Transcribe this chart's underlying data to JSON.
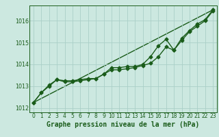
{
  "background_color": "#cce8e0",
  "plot_bg_color": "#cce8e0",
  "grid_color": "#aacfc8",
  "line_color": "#1a5c1a",
  "title": "Graphe pression niveau de la mer (hPa)",
  "xlim": [
    -0.5,
    23.5
  ],
  "ylim": [
    1011.8,
    1016.7
  ],
  "yticks": [
    1012,
    1013,
    1014,
    1015,
    1016
  ],
  "xticks": [
    0,
    1,
    2,
    3,
    4,
    5,
    6,
    7,
    8,
    9,
    10,
    11,
    12,
    13,
    14,
    15,
    16,
    17,
    18,
    19,
    20,
    21,
    22,
    23
  ],
  "series1_x": [
    0,
    1,
    2,
    3,
    4,
    5,
    6,
    7,
    8,
    9,
    10,
    11,
    12,
    13,
    14,
    15,
    16,
    17,
    18,
    19,
    20,
    21,
    22,
    23
  ],
  "series1_y": [
    1012.25,
    1012.7,
    1013.0,
    1013.3,
    1013.2,
    1013.2,
    1013.25,
    1013.3,
    1013.35,
    1013.55,
    1013.75,
    1013.75,
    1013.8,
    1013.85,
    1013.95,
    1014.05,
    1014.35,
    1014.8,
    1014.65,
    1015.1,
    1015.5,
    1015.75,
    1016.0,
    1016.45
  ],
  "series2_x": [
    0,
    1,
    2,
    3,
    4,
    5,
    6,
    7,
    8,
    9,
    10,
    11,
    12,
    13,
    14,
    15,
    16,
    17,
    18,
    19,
    20,
    21,
    22,
    23
  ],
  "series2_y": [
    1012.25,
    1012.7,
    1013.05,
    1013.3,
    1013.25,
    1013.25,
    1013.3,
    1013.35,
    1013.35,
    1013.55,
    1013.85,
    1013.85,
    1013.9,
    1013.9,
    1014.0,
    1014.35,
    1014.85,
    1015.15,
    1014.65,
    1015.2,
    1015.55,
    1015.85,
    1016.05,
    1016.5
  ],
  "trend_x": [
    0,
    23
  ],
  "trend_y": [
    1012.25,
    1016.5
  ],
  "marker": "D",
  "marker_size": 2.5,
  "line_width": 1.0,
  "title_fontsize": 7,
  "tick_fontsize": 5.5
}
